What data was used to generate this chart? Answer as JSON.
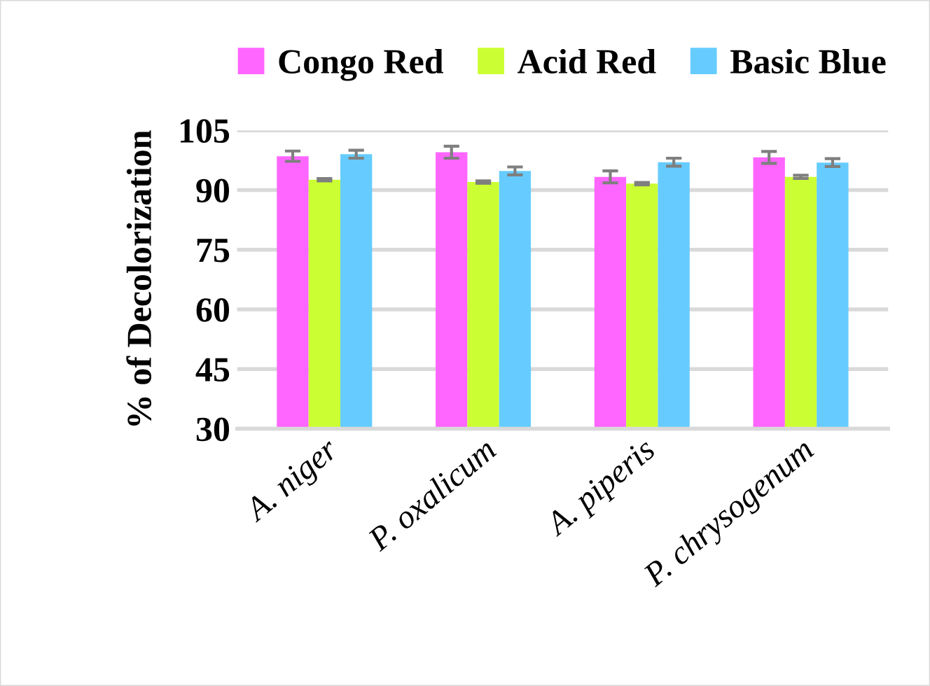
{
  "chart_data": {
    "type": "bar",
    "ylabel": "% of Decolorization",
    "categories": [
      "A. niger",
      "P. oxalicum",
      "A. piperis",
      "P. chrysogenum"
    ],
    "series": [
      {
        "name": "Congo Red",
        "color": "#ff66ff",
        "values": [
          98.5,
          99.5,
          93.3,
          98.2
        ],
        "errors": [
          1.3,
          1.5,
          1.5,
          1.5
        ]
      },
      {
        "name": "Acid Red",
        "color": "#ccff33",
        "values": [
          92.6,
          92.0,
          91.6,
          93.3
        ],
        "errors": [
          0.3,
          0.3,
          0.3,
          0.4
        ]
      },
      {
        "name": "Basic Blue",
        "color": "#66ccff",
        "values": [
          99.0,
          94.8,
          97.0,
          96.9
        ],
        "errors": [
          1.0,
          1.0,
          1.0,
          1.0
        ]
      }
    ],
    "ylim": [
      30,
      105
    ],
    "yticks": [
      30,
      45,
      60,
      75,
      90,
      105
    ],
    "grid": "y",
    "legend": "top"
  }
}
